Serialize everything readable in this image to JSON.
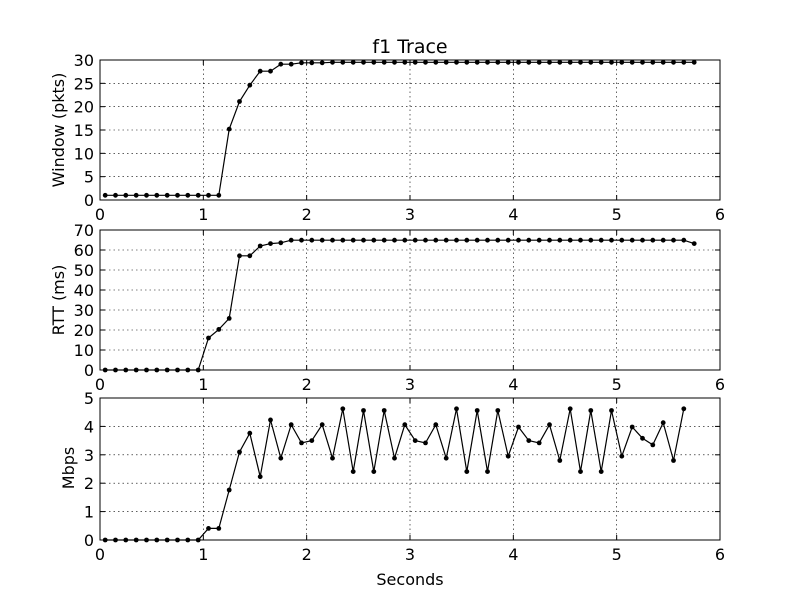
{
  "chart_data": [
    {
      "type": "line",
      "title": "f1 Trace",
      "xlabel": "",
      "ylabel": "Window (pkts)",
      "xlim": [
        0,
        6
      ],
      "ylim": [
        0,
        30
      ],
      "xticks": [
        "0",
        "1",
        "2",
        "3",
        "4",
        "5",
        "6"
      ],
      "yticks": [
        "0",
        "5",
        "10",
        "15",
        "20",
        "25",
        "30"
      ],
      "grid": true,
      "series": [
        {
          "color": "#000000",
          "marker": "dot",
          "x": [
            0.05,
            0.15,
            0.25,
            0.35,
            0.45,
            0.55,
            0.65,
            0.75,
            0.85,
            0.95,
            1.05,
            1.15,
            1.25,
            1.35,
            1.45,
            1.55,
            1.65,
            1.75,
            1.85,
            1.95,
            2.05,
            2.15,
            2.25,
            2.35,
            2.45,
            2.55,
            2.65,
            2.75,
            2.85,
            2.95,
            3.05,
            3.15,
            3.25,
            3.35,
            3.45,
            3.55,
            3.65,
            3.75,
            3.85,
            3.95,
            4.05,
            4.15,
            4.25,
            4.35,
            4.45,
            4.55,
            4.65,
            4.75,
            4.85,
            4.95,
            5.05,
            5.15,
            5.25,
            5.35,
            5.45,
            5.55,
            5.65,
            5.75
          ],
          "y": [
            1,
            1,
            1,
            1,
            1,
            1,
            1,
            1,
            1,
            1,
            1,
            1,
            15.2,
            21.1,
            24.6,
            27.6,
            27.6,
            29.1,
            29.1,
            29.4,
            29.4,
            29.4,
            29.5,
            29.5,
            29.5,
            29.5,
            29.5,
            29.5,
            29.5,
            29.5,
            29.5,
            29.5,
            29.5,
            29.5,
            29.5,
            29.5,
            29.5,
            29.5,
            29.5,
            29.5,
            29.5,
            29.5,
            29.5,
            29.5,
            29.5,
            29.5,
            29.5,
            29.5,
            29.5,
            29.5,
            29.5,
            29.5,
            29.5,
            29.5,
            29.5,
            29.5,
            29.5,
            29.5
          ]
        }
      ]
    },
    {
      "type": "line",
      "title": "",
      "xlabel": "",
      "ylabel": "RTT (ms)",
      "xlim": [
        0,
        6
      ],
      "ylim": [
        0,
        70
      ],
      "xticks": [
        "0",
        "1",
        "2",
        "3",
        "4",
        "5",
        "6"
      ],
      "yticks": [
        "0",
        "10",
        "20",
        "30",
        "40",
        "50",
        "60",
        "70"
      ],
      "grid": true,
      "series": [
        {
          "color": "#000000",
          "marker": "dot",
          "x": [
            0.05,
            0.15,
            0.25,
            0.35,
            0.45,
            0.55,
            0.65,
            0.75,
            0.85,
            0.95,
            1.05,
            1.15,
            1.25,
            1.35,
            1.45,
            1.55,
            1.65,
            1.75,
            1.85,
            1.95,
            2.05,
            2.15,
            2.25,
            2.35,
            2.45,
            2.55,
            2.65,
            2.75,
            2.85,
            2.95,
            3.05,
            3.15,
            3.25,
            3.35,
            3.45,
            3.55,
            3.65,
            3.75,
            3.85,
            3.95,
            4.05,
            4.15,
            4.25,
            4.35,
            4.45,
            4.55,
            4.65,
            4.75,
            4.85,
            4.95,
            5.05,
            5.15,
            5.25,
            5.35,
            5.45,
            5.55,
            5.65,
            5.75
          ],
          "y": [
            0,
            0,
            0,
            0,
            0,
            0,
            0,
            0,
            0,
            0,
            16,
            20.3,
            25.8,
            57.1,
            57.1,
            62,
            63.2,
            63.6,
            64.9,
            64.9,
            64.9,
            64.9,
            64.9,
            64.9,
            64.9,
            64.9,
            64.9,
            64.9,
            64.9,
            64.9,
            64.9,
            64.9,
            64.9,
            64.9,
            64.9,
            64.9,
            64.9,
            64.9,
            64.9,
            64.9,
            64.9,
            64.9,
            64.9,
            64.9,
            64.9,
            64.9,
            64.9,
            64.9,
            64.9,
            64.9,
            64.9,
            64.9,
            64.9,
            64.9,
            64.9,
            64.9,
            64.9,
            63.2
          ]
        }
      ]
    },
    {
      "type": "line",
      "title": "",
      "xlabel": "Seconds",
      "ylabel": "Mbps",
      "xlim": [
        0,
        6
      ],
      "ylim": [
        0,
        5
      ],
      "xticks": [
        "0",
        "1",
        "2",
        "3",
        "4",
        "5",
        "6"
      ],
      "yticks": [
        "0",
        "1",
        "2",
        "3",
        "4",
        "5"
      ],
      "grid": true,
      "series": [
        {
          "color": "#000000",
          "marker": "dot",
          "x": [
            0.05,
            0.15,
            0.25,
            0.35,
            0.45,
            0.55,
            0.65,
            0.75,
            0.85,
            0.95,
            1.05,
            1.15,
            1.25,
            1.35,
            1.45,
            1.55,
            1.65,
            1.75,
            1.85,
            1.95,
            2.05,
            2.15,
            2.25,
            2.35,
            2.45,
            2.55,
            2.65,
            2.75,
            2.85,
            2.95,
            3.05,
            3.15,
            3.25,
            3.35,
            3.45,
            3.55,
            3.65,
            3.75,
            3.85,
            3.95,
            4.05,
            4.15,
            4.25,
            4.35,
            4.45,
            4.55,
            4.65,
            4.75,
            4.85,
            4.95,
            5.05,
            5.15,
            5.25,
            5.35,
            5.45,
            5.55,
            5.65
          ],
          "y": [
            0,
            0,
            0,
            0,
            0,
            0,
            0,
            0,
            0,
            0,
            0.41,
            0.41,
            1.76,
            3.1,
            3.76,
            2.23,
            4.23,
            2.88,
            4.06,
            3.42,
            3.5,
            4.06,
            2.88,
            4.62,
            2.41,
            4.56,
            2.41,
            4.56,
            2.88,
            4.06,
            3.5,
            3.42,
            4.06,
            2.88,
            4.62,
            2.41,
            4.56,
            2.41,
            4.56,
            2.95,
            3.98,
            3.5,
            3.42,
            4.06,
            2.8,
            4.62,
            2.41,
            4.56,
            2.41,
            4.56,
            2.95,
            3.98,
            3.58,
            3.35,
            4.13,
            2.8,
            4.62
          ]
        }
      ]
    }
  ]
}
